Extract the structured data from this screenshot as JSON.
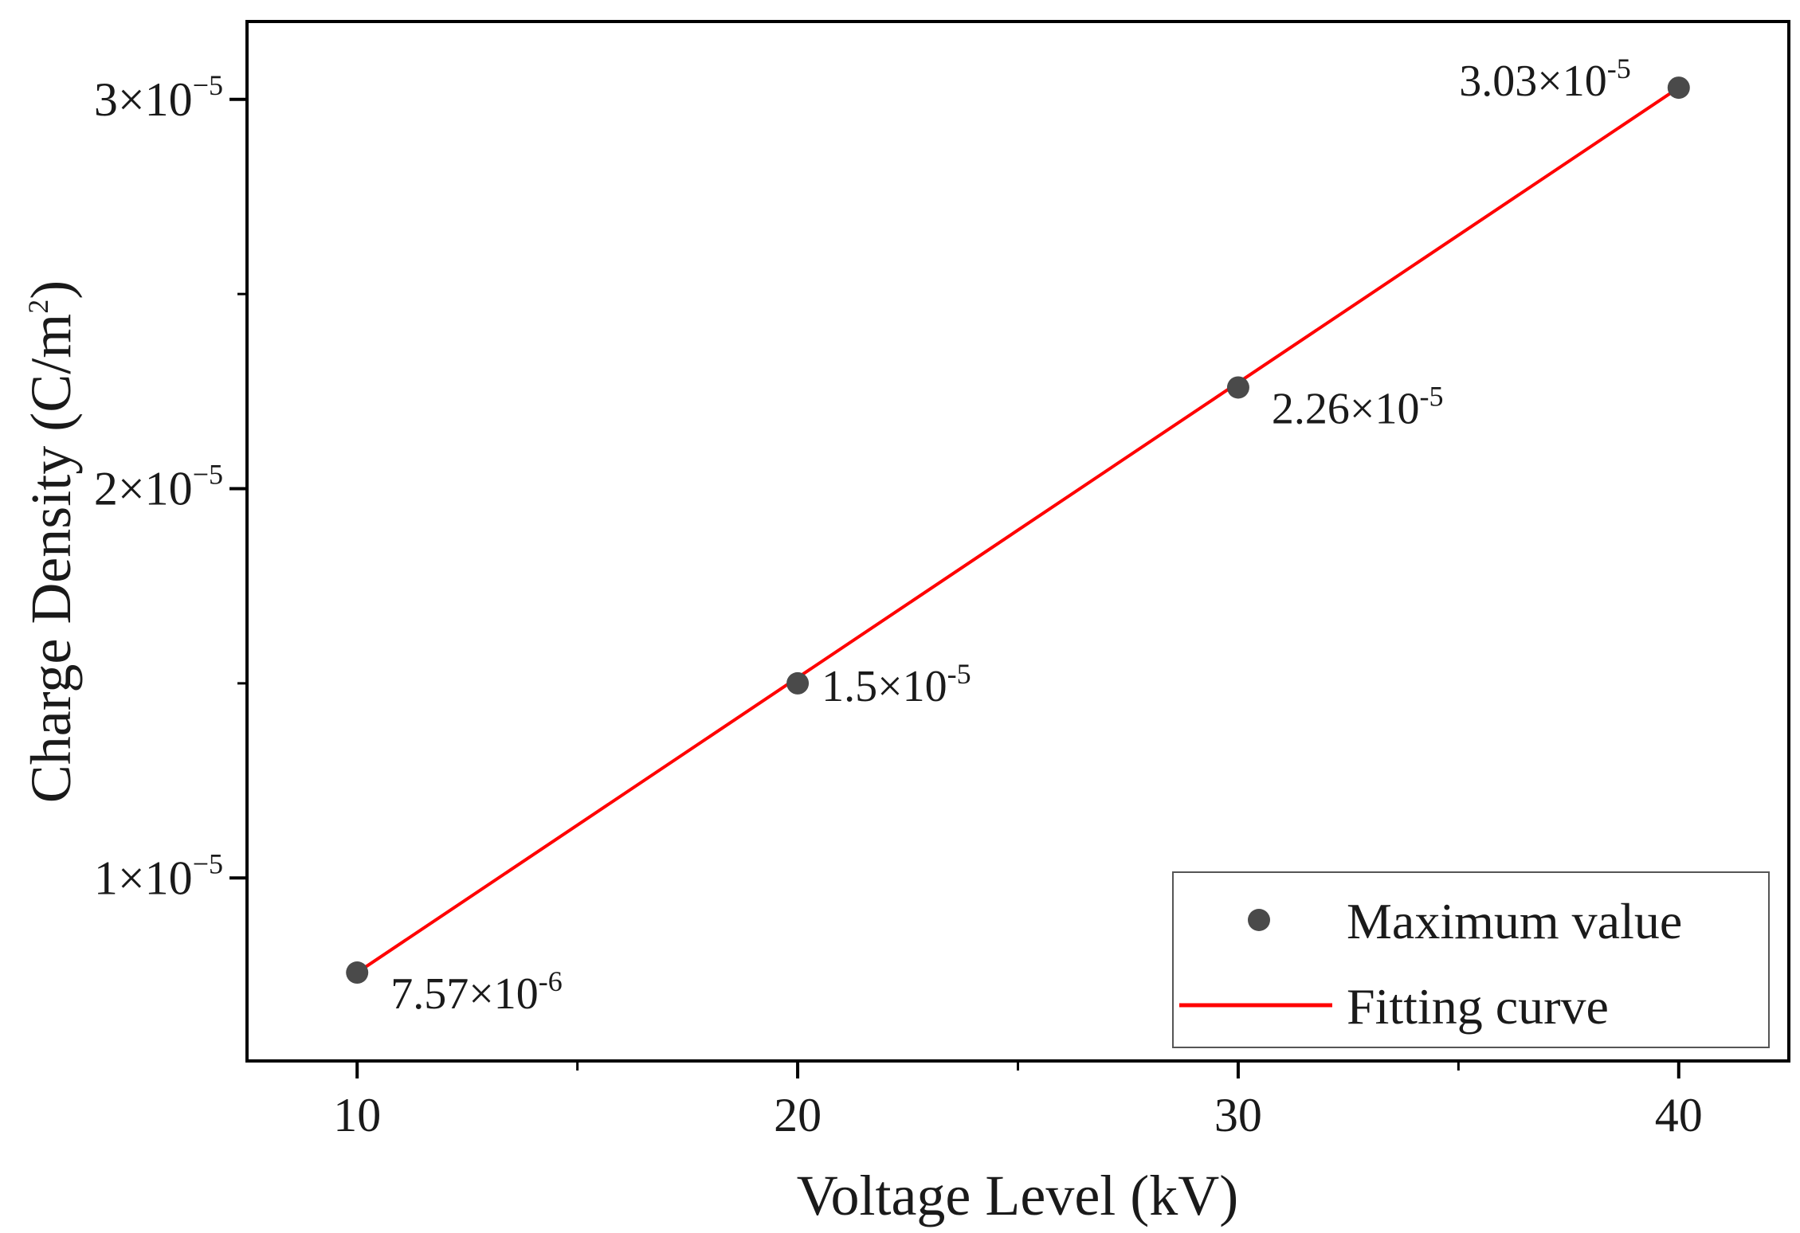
{
  "chart_data": {
    "type": "scatter",
    "title": "",
    "xlabel": "Voltage Level (kV)",
    "ylabel": "Charge Density (C/m",
    "ylabel_sup": "2",
    "ylabel_end": ")",
    "xlim": [
      7.5,
      42.5
    ],
    "ylim": [
      5.3e-06,
      3.2e-05
    ],
    "x_ticks": [
      {
        "value": 10,
        "label": "10"
      },
      {
        "value": 20,
        "label": "20"
      },
      {
        "value": 30,
        "label": "30"
      },
      {
        "value": 40,
        "label": "40"
      }
    ],
    "x_minor_ticks": [
      15,
      25,
      35
    ],
    "y_ticks": [
      {
        "value": 1e-05,
        "mantissa": "1×10",
        "exp": "−5"
      },
      {
        "value": 2e-05,
        "mantissa": "2×10",
        "exp": "−5"
      },
      {
        "value": 3e-05,
        "mantissa": "3×10",
        "exp": "−5"
      }
    ],
    "y_minor_ticks": [
      1.5e-05,
      2.5e-05
    ],
    "grid": false,
    "legend_position": "bottom-right",
    "series": [
      {
        "name": "Maximum value",
        "kind": "scatter",
        "color": "#4a4a4a",
        "x": [
          10,
          20,
          30,
          40
        ],
        "y": [
          7.57e-06,
          1.5e-05,
          2.26e-05,
          3.03e-05
        ],
        "labels": [
          {
            "base": "7.57×10",
            "exp": "-6",
            "placement": "below-right"
          },
          {
            "base": "1.5×10",
            "exp": "-5",
            "placement": "right"
          },
          {
            "base": "2.26×10",
            "exp": "-5",
            "placement": "below-right"
          },
          {
            "base": "3.03×10",
            "exp": "-5",
            "placement": "left"
          }
        ]
      },
      {
        "name": "Fitting curve",
        "kind": "line",
        "color": "#ff0000",
        "x": [
          10,
          40
        ],
        "y": [
          7.57e-06,
          3.03e-05
        ]
      }
    ]
  }
}
